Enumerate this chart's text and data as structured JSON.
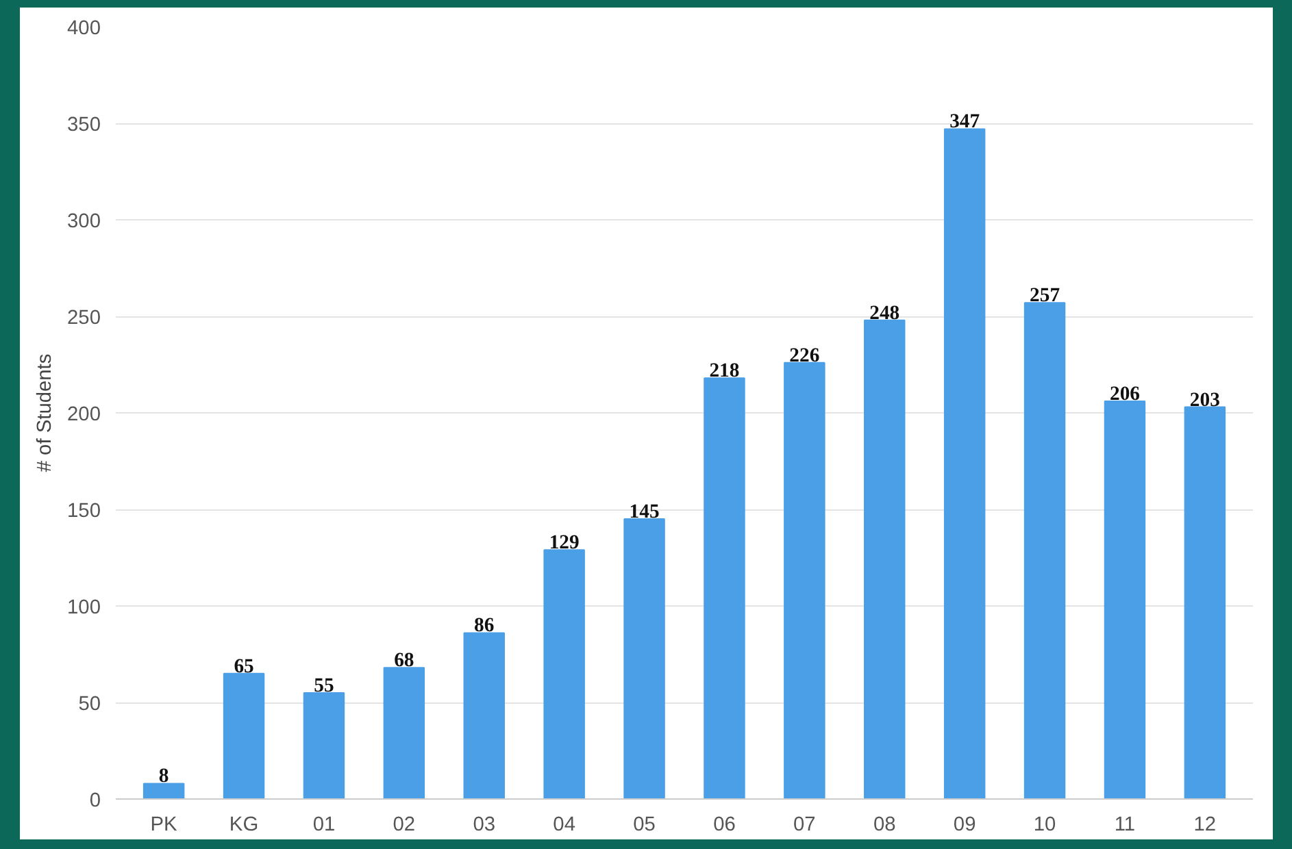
{
  "chart_data": {
    "type": "bar",
    "ylabel": "# of Students",
    "categories": [
      "PK",
      "KG",
      "01",
      "02",
      "03",
      "04",
      "05",
      "06",
      "07",
      "08",
      "09",
      "10",
      "11",
      "12"
    ],
    "values": [
      8,
      65,
      55,
      68,
      86,
      129,
      145,
      218,
      226,
      248,
      347,
      257,
      206,
      203
    ],
    "color": "#4a9fe6",
    "ylim": [
      0,
      400
    ],
    "yticks": [
      0,
      50,
      100,
      150,
      200,
      250,
      300,
      350,
      400
    ],
    "grid": "y",
    "data_labels": true
  }
}
